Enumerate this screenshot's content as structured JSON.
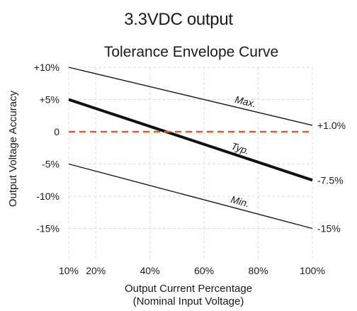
{
  "chart_data": {
    "type": "line",
    "title": "3.3VDC output",
    "subtitle": "Tolerance Envelope  Curve",
    "xlabel": "Output Current Percentage",
    "xlabel2": "(Nominal  Input  Voltage)",
    "ylabel": "Output  Voltage Accuracy",
    "xlim": [
      10,
      100
    ],
    "ylim": [
      -20,
      10
    ],
    "x_ticks": [
      {
        "value": 10,
        "label": "10%"
      },
      {
        "value": 20,
        "label": "20%"
      },
      {
        "value": 40,
        "label": "40%"
      },
      {
        "value": 60,
        "label": "60%"
      },
      {
        "value": 80,
        "label": "80%"
      },
      {
        "value": 100,
        "label": "100%"
      }
    ],
    "y_ticks": [
      {
        "value": 10,
        "label": "+10%"
      },
      {
        "value": 5,
        "label": "+5%"
      },
      {
        "value": 0,
        "label": "0"
      },
      {
        "value": -5,
        "label": "-5%"
      },
      {
        "value": -10,
        "label": "-10%"
      },
      {
        "value": -15,
        "label": "-15%"
      }
    ],
    "grid": true,
    "series": [
      {
        "name": "Max.",
        "x": [
          10,
          100
        ],
        "y": [
          10,
          1
        ],
        "color": "#1a1a1a",
        "width": 1.4,
        "dash": "",
        "label_at": 75,
        "end_label": "+1.0%"
      },
      {
        "name": "Typ.",
        "x": [
          10,
          100
        ],
        "y": [
          5,
          -7.5
        ],
        "color": "#111111",
        "width": 4,
        "dash": "",
        "label_at": 73,
        "end_label": "-7.5%"
      },
      {
        "name": "Min.",
        "x": [
          10,
          100
        ],
        "y": [
          -5,
          -15
        ],
        "color": "#1a1a1a",
        "width": 1.4,
        "dash": "",
        "label_at": 73,
        "end_label": "-15%"
      },
      {
        "name": "",
        "x": [
          10,
          100
        ],
        "y": [
          0,
          0
        ],
        "color": "#e8562f",
        "width": 2.6,
        "dash": "9 6",
        "label_at": null,
        "end_label": ""
      }
    ]
  }
}
